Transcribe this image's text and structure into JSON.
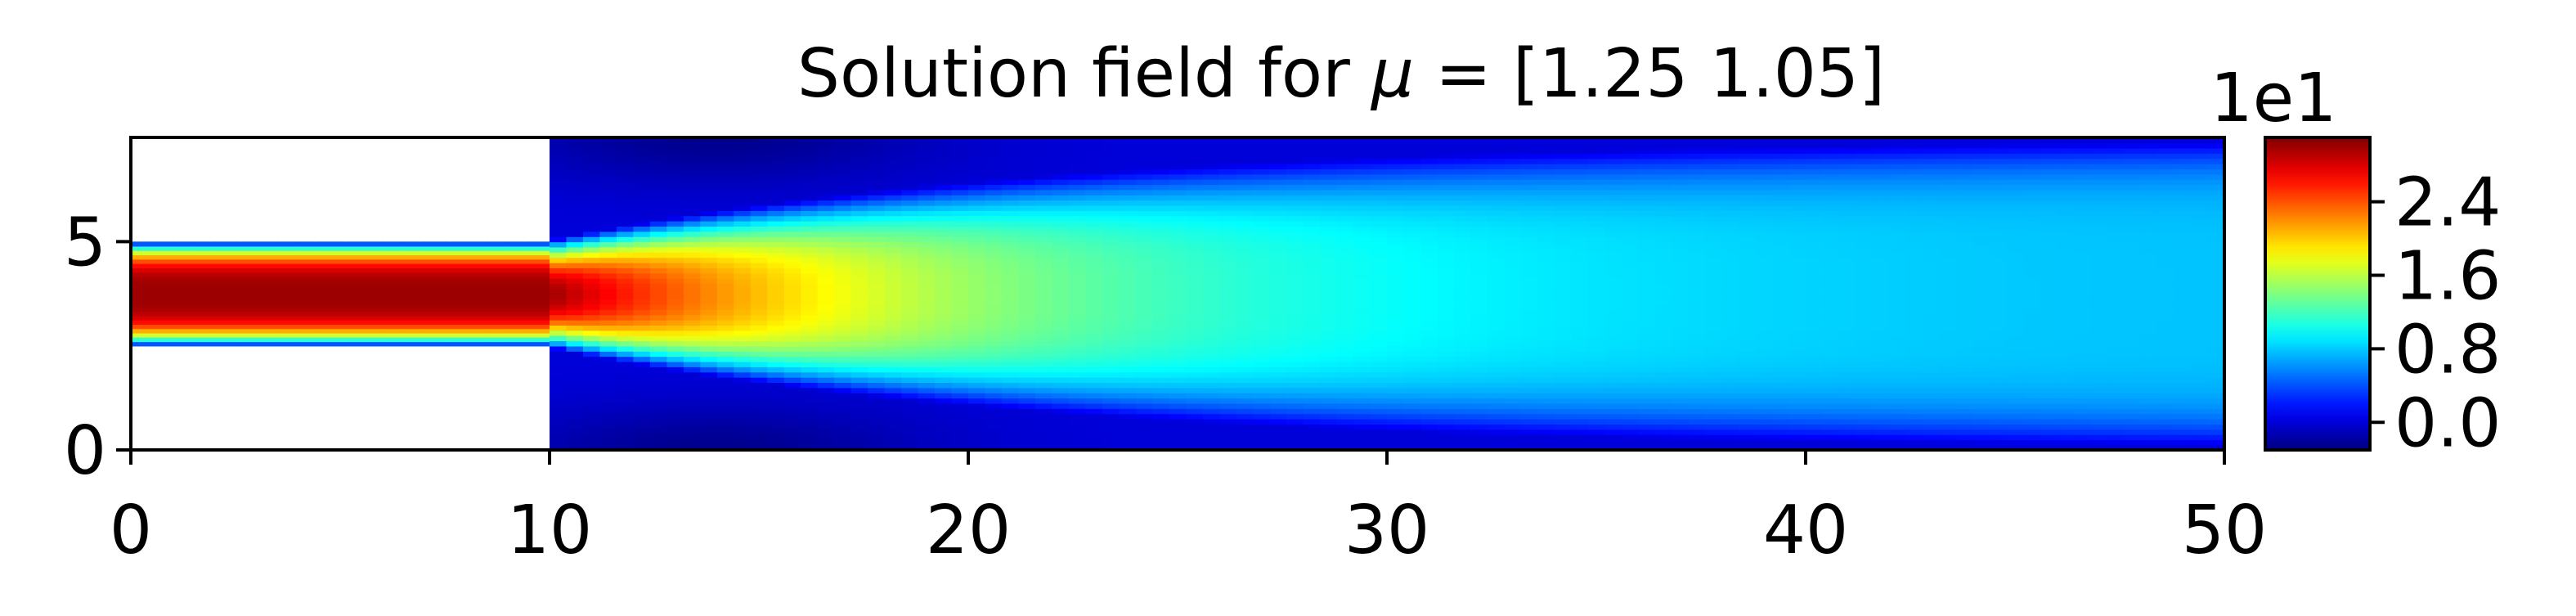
{
  "chart_data": {
    "type": "heatmap",
    "title_prefix": "Solution field for ",
    "title_mu": "μ",
    "title_suffix": " = [1.25 1.05]",
    "xlabel": "",
    "ylabel": "",
    "xlim": [
      0,
      50
    ],
    "ylim": [
      0,
      7.5
    ],
    "x_ticks": [
      "0",
      "10",
      "20",
      "30",
      "40",
      "50"
    ],
    "y_ticks": [
      "0",
      "5"
    ],
    "colormap": "jet",
    "colorbar": {
      "exponent_label": "1e1",
      "ticks": [
        "0.0",
        "0.8",
        "1.6",
        "2.4"
      ],
      "range": [
        -0.3,
        3.1
      ]
    },
    "domain": {
      "inlet_channel": {
        "x": [
          0,
          10
        ],
        "y": [
          2.5,
          5.0
        ]
      },
      "expansion_chamber": {
        "x": [
          10,
          50
        ],
        "y": [
          0,
          7.5
        ]
      }
    },
    "field_features": {
      "inlet_core_value": 3.0,
      "inlet_wall_value": 0.0,
      "mid_centerline_x20": 1.7,
      "outlet_centerline_value": 0.75,
      "recirculation_min": -0.25
    },
    "colors": {
      "jet_stops": [
        "#00007f",
        "#0000ff",
        "#007fff",
        "#00ffff",
        "#7fff7f",
        "#ffff00",
        "#ff7f00",
        "#ff0000",
        "#7f0000"
      ]
    }
  }
}
